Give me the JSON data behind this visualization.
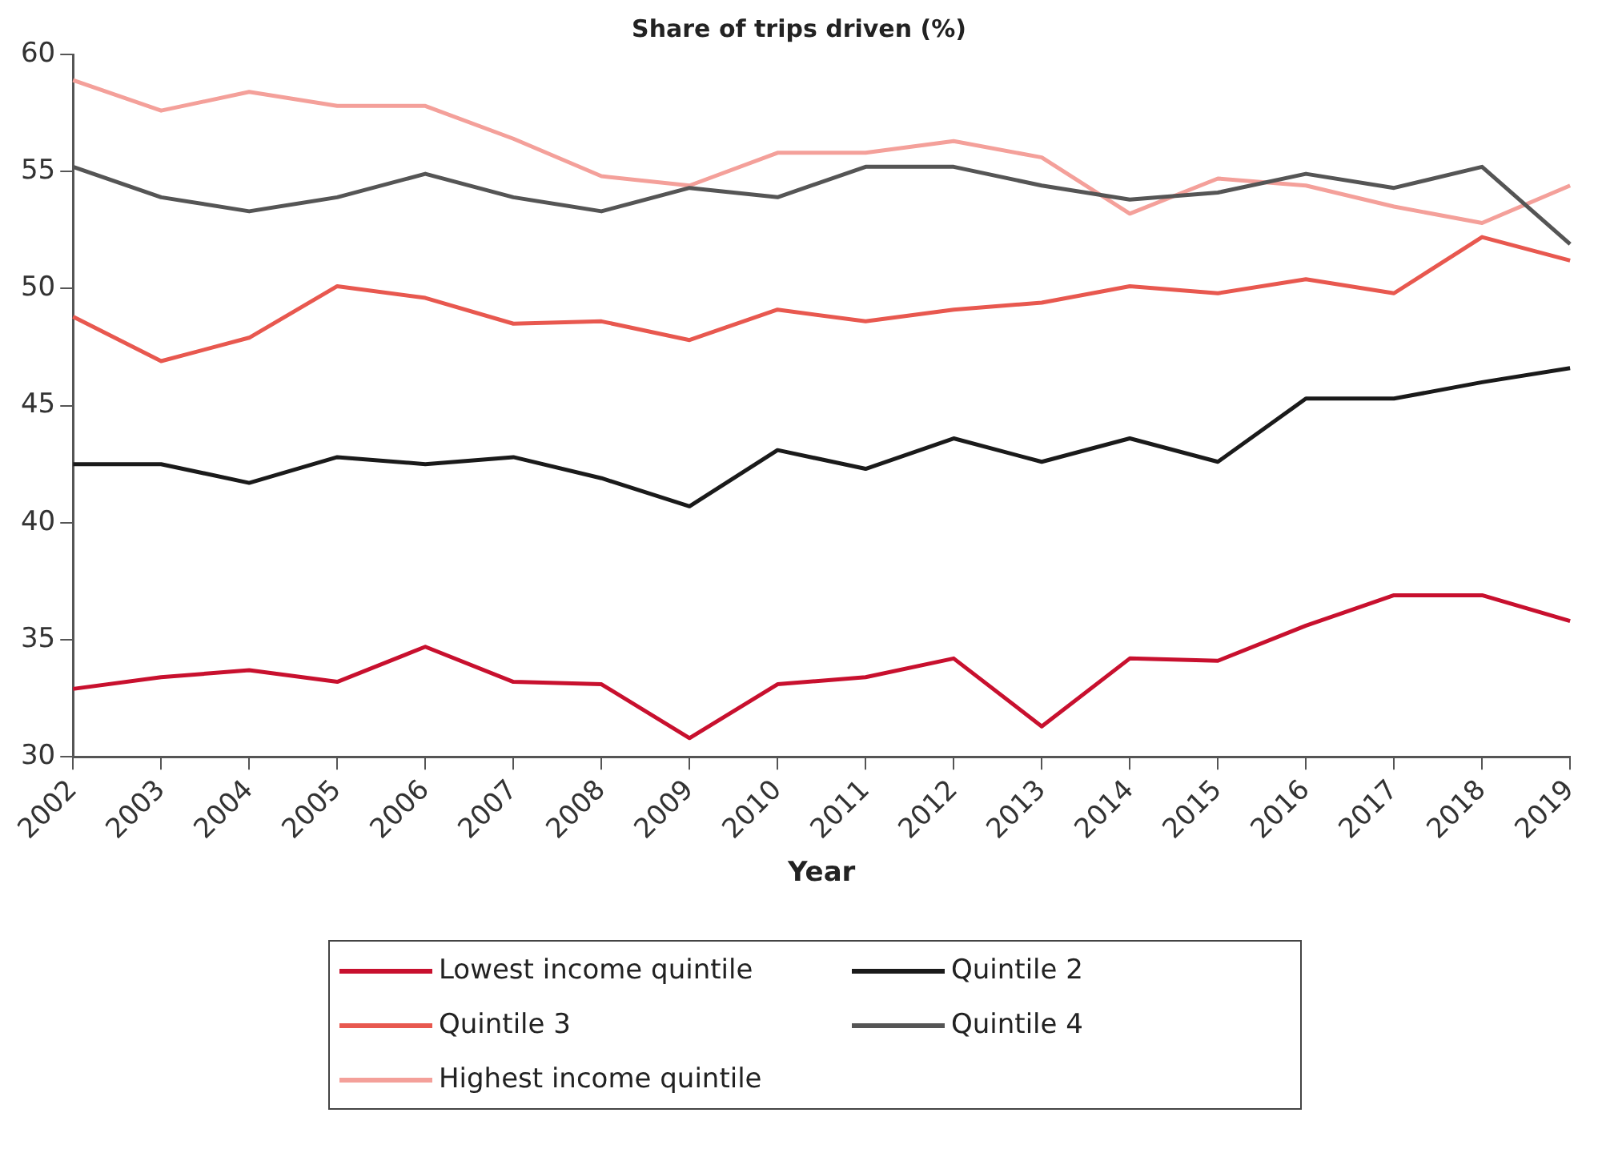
{
  "chart_data": {
    "type": "line",
    "title": "Share of trips driven (%)",
    "xlabel": "Year",
    "categories": [
      "2002",
      "2003",
      "2004",
      "2005",
      "2006",
      "2007",
      "2008",
      "2009",
      "2010",
      "2011",
      "2012",
      "2013",
      "2014",
      "2015",
      "2016",
      "2017",
      "2018",
      "2019"
    ],
    "series": [
      {
        "name": "Lowest income quintile",
        "color": "#c8102e",
        "values": [
          32.9,
          33.4,
          33.7,
          33.2,
          34.7,
          33.2,
          33.1,
          30.8,
          33.1,
          33.4,
          34.2,
          31.3,
          34.2,
          34.1,
          35.6,
          36.9,
          36.9,
          35.8
        ]
      },
      {
        "name": "Quintile 2",
        "color": "#1a1a1a",
        "values": [
          42.5,
          42.5,
          41.7,
          42.8,
          42.5,
          42.8,
          41.9,
          40.7,
          43.1,
          42.3,
          43.6,
          42.6,
          43.6,
          42.6,
          45.3,
          45.3,
          46.0,
          46.6
        ]
      },
      {
        "name": "Quintile 3",
        "color": "#e8584f",
        "values": [
          48.8,
          46.9,
          47.9,
          50.1,
          49.6,
          48.5,
          48.6,
          47.8,
          49.1,
          48.6,
          49.1,
          49.4,
          50.1,
          49.8,
          50.4,
          49.8,
          52.2,
          51.2
        ]
      },
      {
        "name": "Quintile 4",
        "color": "#555555",
        "values": [
          55.2,
          53.9,
          53.3,
          53.9,
          54.9,
          53.9,
          53.3,
          54.3,
          53.9,
          55.2,
          55.2,
          54.4,
          53.8,
          54.1,
          54.9,
          54.3,
          55.2,
          51.9
        ]
      },
      {
        "name": "Highest income quintile",
        "color": "#f4a09a",
        "values": [
          58.9,
          57.6,
          58.4,
          57.8,
          57.8,
          56.4,
          54.8,
          54.4,
          55.8,
          55.8,
          56.3,
          55.6,
          53.2,
          54.7,
          54.4,
          53.5,
          52.8,
          54.4
        ]
      }
    ],
    "ylim": [
      30,
      60
    ],
    "yticks": [
      30,
      35,
      40,
      45,
      50,
      55,
      60
    ],
    "grid": false,
    "legend": "bottom",
    "marker": "none",
    "line_style": "solid"
  }
}
